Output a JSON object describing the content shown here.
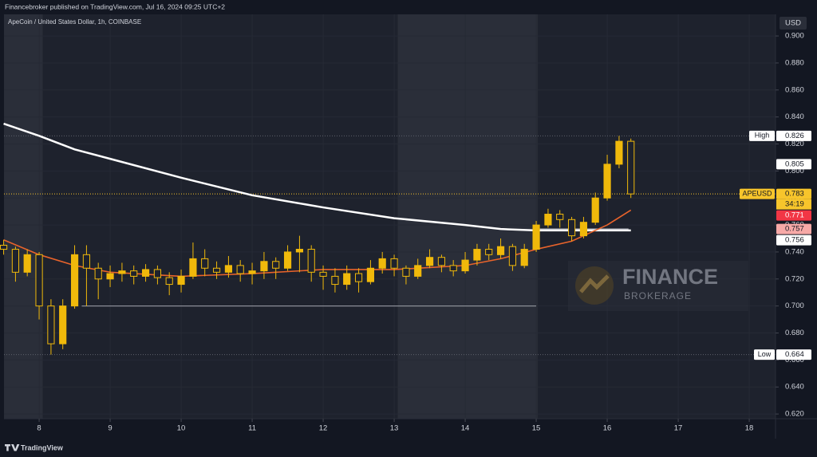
{
  "chart_data": {
    "type": "candlestick",
    "header": "Financebroker published on TradingView.com, Jul 16, 2024 09:25 UTC+2",
    "title": "ApeCoin / United States Dollar, 1h, COINBASE",
    "currency": "USD",
    "color": "#f0b90b",
    "x": [
      7.5,
      7.667,
      7.833,
      8.0,
      8.167,
      8.333,
      8.5,
      8.667,
      8.833,
      9.0,
      9.167,
      9.333,
      9.5,
      9.667,
      9.833,
      10.0,
      10.167,
      10.333,
      10.5,
      10.667,
      10.833,
      11.0,
      11.167,
      11.333,
      11.5,
      11.667,
      11.833,
      12.0,
      12.167,
      12.333,
      12.5,
      12.667,
      12.833,
      13.0,
      13.167,
      13.333,
      13.5,
      13.667,
      13.833,
      14.0,
      14.167,
      14.333,
      14.5,
      14.667,
      14.833,
      15.0,
      15.167,
      15.333,
      15.5,
      15.667,
      15.833,
      16.0,
      16.167,
      16.333
    ],
    "open": [
      0.745,
      0.742,
      0.725,
      0.738,
      0.7,
      0.672,
      0.7,
      0.738,
      0.728,
      0.72,
      0.724,
      0.726,
      0.722,
      0.727,
      0.721,
      0.716,
      0.722,
      0.735,
      0.728,
      0.725,
      0.73,
      0.724,
      0.726,
      0.733,
      0.728,
      0.74,
      0.742,
      0.725,
      0.722,
      0.716,
      0.724,
      0.718,
      0.728,
      0.735,
      0.728,
      0.722,
      0.73,
      0.736,
      0.73,
      0.726,
      0.734,
      0.742,
      0.738,
      0.744,
      0.73,
      0.742,
      0.76,
      0.768,
      0.764,
      0.752,
      0.762,
      0.78,
      0.805,
      0.822
    ],
    "high": [
      0.749,
      0.744,
      0.742,
      0.74,
      0.705,
      0.705,
      0.745,
      0.745,
      0.732,
      0.73,
      0.732,
      0.73,
      0.731,
      0.73,
      0.725,
      0.727,
      0.747,
      0.742,
      0.733,
      0.737,
      0.734,
      0.732,
      0.74,
      0.736,
      0.745,
      0.752,
      0.745,
      0.73,
      0.728,
      0.73,
      0.728,
      0.734,
      0.74,
      0.738,
      0.73,
      0.735,
      0.742,
      0.738,
      0.734,
      0.74,
      0.746,
      0.746,
      0.75,
      0.746,
      0.746,
      0.763,
      0.772,
      0.771,
      0.766,
      0.766,
      0.784,
      0.812,
      0.826,
      0.824
    ],
    "low": [
      0.738,
      0.718,
      0.722,
      0.69,
      0.664,
      0.668,
      0.698,
      0.7,
      0.705,
      0.714,
      0.718,
      0.716,
      0.718,
      0.716,
      0.708,
      0.71,
      0.72,
      0.722,
      0.72,
      0.721,
      0.718,
      0.716,
      0.72,
      0.72,
      0.726,
      0.725,
      0.718,
      0.712,
      0.71,
      0.712,
      0.71,
      0.716,
      0.724,
      0.722,
      0.716,
      0.72,
      0.728,
      0.725,
      0.722,
      0.724,
      0.73,
      0.734,
      0.735,
      0.726,
      0.728,
      0.74,
      0.758,
      0.758,
      0.748,
      0.75,
      0.76,
      0.778,
      0.802,
      0.78
    ],
    "close": [
      0.742,
      0.725,
      0.738,
      0.7,
      0.672,
      0.7,
      0.738,
      0.728,
      0.72,
      0.724,
      0.726,
      0.722,
      0.727,
      0.721,
      0.716,
      0.722,
      0.735,
      0.728,
      0.725,
      0.73,
      0.724,
      0.726,
      0.733,
      0.728,
      0.74,
      0.742,
      0.725,
      0.722,
      0.716,
      0.724,
      0.718,
      0.728,
      0.735,
      0.728,
      0.722,
      0.73,
      0.736,
      0.73,
      0.726,
      0.734,
      0.742,
      0.738,
      0.744,
      0.73,
      0.742,
      0.76,
      0.768,
      0.764,
      0.752,
      0.762,
      0.78,
      0.805,
      0.822,
      0.783
    ],
    "moving_averages": [
      {
        "color": "#ffffff",
        "x": [
          7.5,
          8.0,
          8.5,
          9.0,
          10.0,
          11.0,
          12.0,
          13.0,
          14.0,
          14.5,
          15.0,
          15.5,
          16.0,
          16.333
        ],
        "values": [
          0.835,
          0.826,
          0.816,
          0.809,
          0.795,
          0.782,
          0.773,
          0.765,
          0.76,
          0.757,
          0.756,
          0.756,
          0.756,
          0.756
        ]
      },
      {
        "color": "#e8632b",
        "x": [
          7.5,
          8.0,
          8.5,
          9.0,
          10.0,
          11.0,
          12.0,
          13.0,
          14.0,
          14.5,
          15.0,
          15.5,
          16.0,
          16.333
        ],
        "values": [
          0.749,
          0.738,
          0.73,
          0.725,
          0.722,
          0.724,
          0.727,
          0.727,
          0.73,
          0.735,
          0.742,
          0.748,
          0.76,
          0.771
        ]
      }
    ],
    "levels": [
      {
        "value": 0.7,
        "from": 8.6,
        "to": 15.0,
        "color": "#8a8d96"
      },
      {
        "value": 0.757,
        "from": 15.0,
        "to": 16.3,
        "color": "#b2b5be"
      }
    ],
    "shaded_ranges": [
      [
        7.505,
        8.05
      ],
      [
        13.05,
        15.02
      ]
    ],
    "price_labels": [
      {
        "value": 0.826,
        "tag": "High",
        "color": "#ffffff"
      },
      {
        "value": 0.805,
        "color": "#ffffff"
      },
      {
        "value": 0.783,
        "tag": "APEUSD",
        "countdown": "34:19",
        "color": "#f7c52b"
      },
      {
        "value": 0.771,
        "color": "#f23645"
      },
      {
        "value": 0.757,
        "color": "#f7a9a7"
      },
      {
        "value": 0.756,
        "color": "#ffffff"
      },
      {
        "value": 0.664,
        "tag": "Low",
        "color": "#ffffff"
      }
    ],
    "xlim": [
      7.505,
      18.37
    ],
    "xticks": [
      8,
      9,
      10,
      11,
      12,
      13,
      14,
      15,
      16,
      17,
      18
    ],
    "ylim": [
      0.6165,
      0.916
    ],
    "yticks": [
      {
        "value": 0.62,
        "label": "0.620"
      },
      {
        "value": 0.64,
        "label": "0.640"
      },
      {
        "value": 0.66,
        "label": "0.660"
      },
      {
        "value": 0.68,
        "label": "0.680"
      },
      {
        "value": 0.7,
        "label": "0.700"
      },
      {
        "value": 0.72,
        "label": "0.720"
      },
      {
        "value": 0.74,
        "label": "0.740"
      },
      {
        "value": 0.76,
        "label": "0.760"
      },
      {
        "value": 0.78,
        "label": "0.780"
      },
      {
        "value": 0.8,
        "label": "0.800"
      },
      {
        "value": 0.82,
        "label": "0.820"
      },
      {
        "value": 0.84,
        "label": "0.840"
      },
      {
        "value": 0.86,
        "label": "0.860"
      },
      {
        "value": 0.88,
        "label": "0.880"
      },
      {
        "value": 0.9,
        "label": "0.900"
      }
    ],
    "watermark": {
      "title": "FINANCE",
      "subtitle": "BROKERAGE"
    },
    "logo": "TradingView"
  }
}
